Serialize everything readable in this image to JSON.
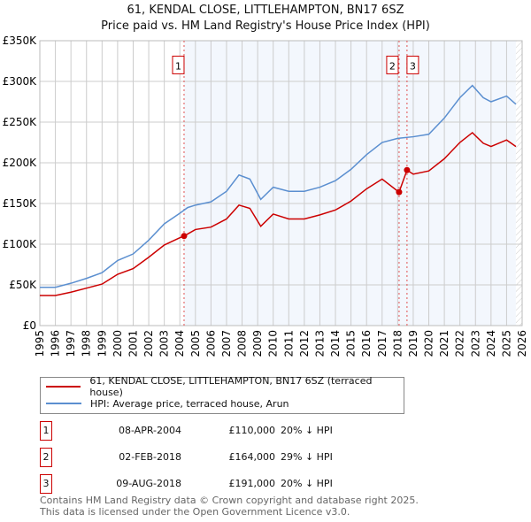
{
  "chart_data": {
    "type": "line",
    "title": "61, KENDAL CLOSE, LITTLEHAMPTON, BN17 6SZ",
    "subtitle": "Price paid vs. HM Land Registry's House Price Index (HPI)",
    "xlim": [
      1995,
      2026
    ],
    "ylim": [
      0,
      350000
    ],
    "x_ticks": [
      "1995",
      "1996",
      "1997",
      "1998",
      "1999",
      "2000",
      "2001",
      "2002",
      "2003",
      "2004",
      "2005",
      "2006",
      "2007",
      "2008",
      "2009",
      "2010",
      "2011",
      "2012",
      "2013",
      "2014",
      "2015",
      "2016",
      "2017",
      "2018",
      "2019",
      "2020",
      "2021",
      "2022",
      "2023",
      "2024",
      "2025",
      "2026"
    ],
    "y_ticks": [
      {
        "v": 0,
        "label": "£0"
      },
      {
        "v": 50000,
        "label": "£50K"
      },
      {
        "v": 100000,
        "label": "£100K"
      },
      {
        "v": 150000,
        "label": "£150K"
      },
      {
        "v": 200000,
        "label": "£200K"
      },
      {
        "v": 250000,
        "label": "£250K"
      },
      {
        "v": 300000,
        "label": "£300K"
      },
      {
        "v": 350000,
        "label": "£350K"
      }
    ],
    "grid": true,
    "series": [
      {
        "name": "61, KENDAL CLOSE, LITTLEHAMPTON, BN17 6SZ (terraced house)",
        "color": "#cc0000",
        "x": [
          1995,
          1996,
          1997,
          1998,
          1999,
          2000,
          2001,
          2002,
          2003,
          2004,
          2004.27,
          2005,
          2006,
          2007,
          2007.8,
          2008.5,
          2009.2,
          2010,
          2011,
          2012,
          2013,
          2014,
          2015,
          2016,
          2017,
          2018.08,
          2018.09,
          2018.6,
          2019,
          2020,
          2021,
          2022,
          2022.8,
          2023.5,
          2024,
          2025,
          2025.6
        ],
        "y": [
          37000,
          37000,
          41000,
          46000,
          51000,
          63000,
          70000,
          84000,
          99000,
          108000,
          110000,
          118000,
          121000,
          131000,
          148000,
          144000,
          122000,
          137000,
          131000,
          131000,
          136000,
          142000,
          153000,
          168000,
          180000,
          164000,
          164000,
          191000,
          186000,
          190000,
          205000,
          225000,
          237000,
          224000,
          220000,
          228000,
          220000
        ]
      },
      {
        "name": "HPI: Average price, terraced house, Arun",
        "color": "#5b8fd0",
        "x": [
          1995,
          1996,
          1997,
          1998,
          1999,
          2000,
          2001,
          2002,
          2003,
          2004,
          2004.5,
          2005,
          2006,
          2007,
          2007.8,
          2008.5,
          2009.2,
          2010,
          2011,
          2012,
          2013,
          2014,
          2015,
          2016,
          2017,
          2018,
          2019,
          2020,
          2021,
          2022,
          2022.8,
          2023.5,
          2024,
          2025,
          2025.6
        ],
        "y": [
          47000,
          47000,
          52000,
          58000,
          65000,
          80000,
          88000,
          105000,
          125000,
          138000,
          145000,
          148000,
          152000,
          165000,
          185000,
          180000,
          155000,
          170000,
          165000,
          165000,
          170000,
          178000,
          192000,
          210000,
          225000,
          230000,
          232000,
          235000,
          255000,
          280000,
          295000,
          280000,
          275000,
          282000,
          272000
        ]
      }
    ],
    "sales": [
      {
        "n": "1",
        "x": 2004.27,
        "y": 110000
      },
      {
        "n": "2",
        "x": 2018.09,
        "y": 164000
      },
      {
        "n": "3",
        "x": 2018.6,
        "y": 191000
      }
    ],
    "data_end": 2025.6
  },
  "legend": {
    "red": "61, KENDAL CLOSE, LITTLEHAMPTON, BN17 6SZ (terraced house)",
    "blue": "HPI: Average price, terraced house, Arun"
  },
  "table": [
    {
      "n": "1",
      "date": "08-APR-2004",
      "price": "£110,000",
      "hpi": "20% ↓ HPI"
    },
    {
      "n": "2",
      "date": "02-FEB-2018",
      "price": "£164,000",
      "hpi": "29% ↓ HPI"
    },
    {
      "n": "3",
      "date": "09-AUG-2018",
      "price": "£191,000",
      "hpi": "20% ↓ HPI"
    }
  ],
  "footer": {
    "line1": "Contains HM Land Registry data © Crown copyright and database right 2025.",
    "line2": "This data is licensed under the Open Government Licence v3.0."
  }
}
